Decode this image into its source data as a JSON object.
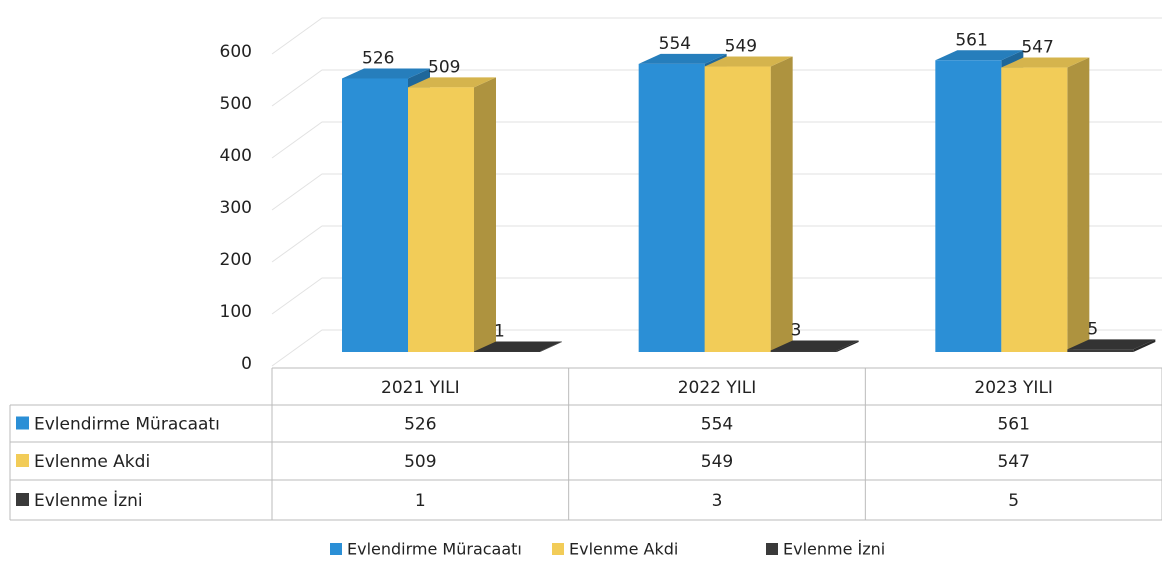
{
  "chart_data": {
    "type": "bar3d",
    "categories": [
      "2021 YILI",
      "2022 YILI",
      "2023 YILI"
    ],
    "series": [
      {
        "name": "Evlendirme Müracaatı",
        "color": "#2b8fd6",
        "values": [
          526,
          554,
          561
        ]
      },
      {
        "name": "Evlenme Akdi",
        "color": "#f2cc58",
        "values": [
          509,
          549,
          547
        ]
      },
      {
        "name": "Evlenme İzni",
        "color": "#3a3a3a",
        "values": [
          1,
          3,
          5
        ]
      }
    ],
    "ylim": [
      0,
      600
    ],
    "yticks": [
      0,
      100,
      200,
      300,
      400,
      500,
      600
    ],
    "grid": true
  }
}
